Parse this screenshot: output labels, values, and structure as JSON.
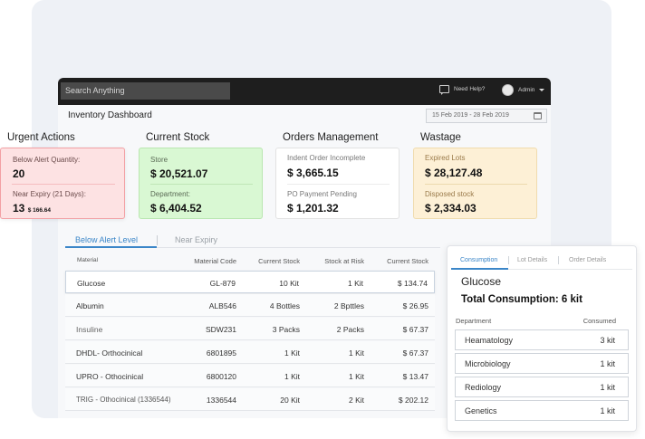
{
  "topbar": {
    "search_placeholder": "Search Anything",
    "help_label": "Need Help?",
    "user_label": "Admin"
  },
  "dashboard": {
    "title": "Inventory Dashboard",
    "date_range": "15 Feb 2019 - 28 Feb 2019"
  },
  "sections": {
    "urgent": {
      "title": "Urgent Actions",
      "below_alert_label": "Below Alert Quantity:",
      "below_alert_value": "20",
      "near_expiry_label": "Near Expiry (21 Days):",
      "near_expiry_count": "13",
      "near_expiry_amount": "$ 166.64"
    },
    "stock": {
      "title": "Current Stock",
      "store_label": "Store",
      "store_value": "$ 20,521.07",
      "dept_label": "Department:",
      "dept_value": "$ 6,404.52"
    },
    "orders": {
      "title": "Orders Management",
      "indent_label": "Indent Order Incomplete",
      "indent_value": "$ 3,665.15",
      "po_label": "PO Payment Pending",
      "po_value": "$ 1,201.32"
    },
    "wastage": {
      "title": "Wastage",
      "expired_label": "Expired Lots",
      "expired_value": "$ 28,127.48",
      "disposed_label": "Disposed stock",
      "disposed_value": "$ 2,334.03"
    }
  },
  "tabs": {
    "below_alert": "Below Alert Level",
    "near_expiry": "Near Expiry"
  },
  "table": {
    "headers": [
      "Material",
      "Material Code",
      "Current Stock",
      "Stock at Risk",
      "Current Stock"
    ],
    "rows": [
      [
        "Glucose",
        "GL-879",
        "10 Kit",
        "1 Kit",
        "$ 134.74"
      ],
      [
        "Albumin",
        "ALB546",
        "4 Bottles",
        "2 Bpttles",
        "$ 26.95"
      ],
      [
        "Insuline",
        "SDW231",
        "3 Packs",
        "2 Packs",
        "$ 67.37"
      ],
      [
        "DHDL- Orthocinical",
        "6801895",
        "1 Kit",
        "1 Kit",
        "$ 67.37"
      ],
      [
        "UPRO - Othocinical",
        "6800120",
        "1 Kit",
        "1 Kit",
        "$ 13.47"
      ],
      [
        "TRIG - Othocinical (1336544)",
        "1336544",
        "20 Kit",
        "2 Kit",
        "$ 202.12"
      ]
    ]
  },
  "detail_panel": {
    "tabs": [
      "Consumption",
      "Lot Details",
      "Order Details"
    ],
    "title": "Glucose",
    "total": "Total Consumption: 6 kit",
    "col_department": "Department",
    "col_consumed": "Consumed",
    "rows": [
      [
        "Heamatology",
        "3 kit"
      ],
      [
        "Microbiology",
        "1 kit"
      ],
      [
        "Rediology",
        "1 kit"
      ],
      [
        "Genetics",
        "1 kit"
      ]
    ]
  }
}
